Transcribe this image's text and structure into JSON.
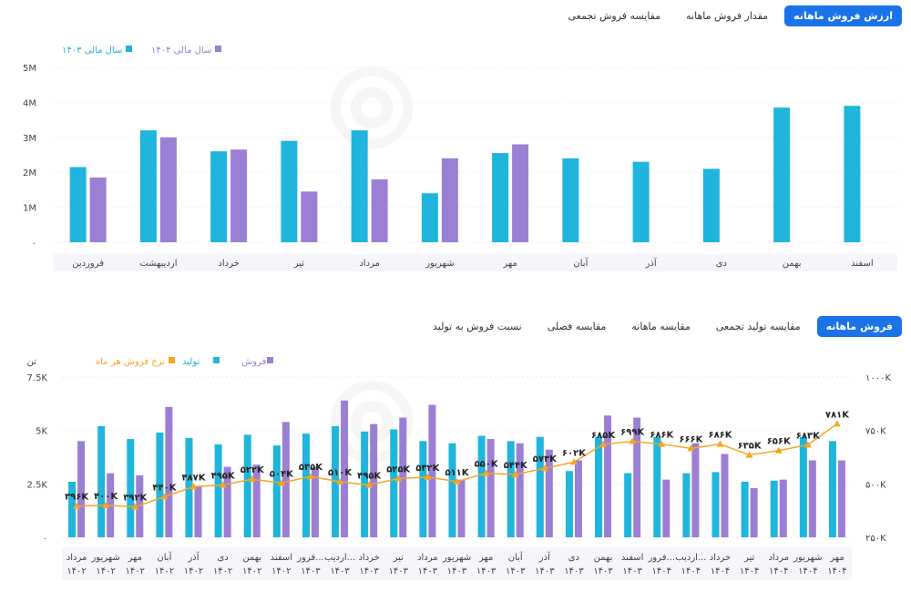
{
  "top_tabs": [
    {
      "label": "ارزش فروش ماهانه",
      "active": true
    },
    {
      "label": "مقدار فروش ماهانه",
      "active": false
    },
    {
      "label": "مقایسه فروش تجمعی",
      "active": false
    }
  ],
  "bottom_tabs": [
    {
      "label": "فروش ماهانه",
      "active": true
    },
    {
      "label": "مقایسه تولید تجمعی",
      "active": false
    },
    {
      "label": "مقایسه ماهانه",
      "active": false
    },
    {
      "label": "مقایسه فصلی",
      "active": false
    },
    {
      "label": "نسبت فروش به تولید",
      "active": false
    }
  ],
  "colors": {
    "blue": "#1fb5dc",
    "purple": "#9b7fd4",
    "orange": "#f5a623",
    "accent": "#1a73e8"
  },
  "chart_data": [
    {
      "type": "bar",
      "categories": [
        "فروردین",
        "اردیبهشت",
        "خرداد",
        "تیر",
        "مرداد",
        "شهریور",
        "مهر",
        "آبان",
        "آذر",
        "دی",
        "بهمن",
        "اسفند"
      ],
      "series": [
        {
          "name": "سال مالی ۱۴۰۳",
          "color": "#1fb5dc",
          "values": [
            2.15,
            3.2,
            2.6,
            2.9,
            3.2,
            1.4,
            2.55,
            2.4,
            2.3,
            2.1,
            3.85,
            3.9
          ]
        },
        {
          "name": "سال مالی ۱۴۰۴",
          "color": "#9b7fd4",
          "values": [
            1.85,
            3.0,
            2.65,
            1.45,
            1.8,
            2.4,
            2.8,
            null,
            null,
            null,
            null,
            null
          ]
        }
      ],
      "yticks": [
        "۰",
        "1M",
        "2M",
        "3M",
        "4M",
        "5M"
      ],
      "ylim": [
        0,
        5
      ],
      "legend": "top-left"
    },
    {
      "type": "bar",
      "left_axis_unit": "تن",
      "categories": [
        "مرداد ۱۴۰۲",
        "شهریور ۱۴۰۲",
        "مهر ۱۴۰۲",
        "آبان ۱۴۰۲",
        "آذر ۱۴۰۲",
        "دی ۱۴۰۲",
        "بهمن ۱۴۰۲",
        "اسفند ۱۴۰۲",
        "فرور... ۱۴۰۳",
        "اردیب... ۱۴۰۳",
        "خرداد ۱۴۰۳",
        "تیر ۱۴۰۳",
        "مرداد ۱۴۰۳",
        "شهریور ۱۴۰۳",
        "مهر ۱۴۰۳",
        "آبان ۱۴۰۳",
        "آذر ۱۴۰۳",
        "دی ۱۴۰۳",
        "بهمن ۱۴۰۳",
        "اسفند ۱۴۰۳",
        "فرور... ۱۴۰۴",
        "اردیب... ۱۴۰۴",
        "خرداد ۱۴۰۴",
        "تیر ۱۴۰۴",
        "مرداد ۱۴۰۴",
        "شهریور ۱۴۰۴",
        "مهر ۱۴۰۴"
      ],
      "series": [
        {
          "name": "تولید",
          "color": "#1fb5dc",
          "values": [
            2.6,
            5.2,
            4.6,
            4.9,
            4.65,
            4.35,
            4.8,
            4.3,
            4.85,
            5.2,
            4.95,
            5.05,
            4.5,
            4.4,
            4.75,
            4.5,
            4.7,
            3.1,
            4.7,
            3.0,
            4.7,
            3.0,
            3.05,
            2.6,
            2.65,
            4.7,
            4.5
          ]
        },
        {
          "name": "فروش",
          "color": "#9b7fd4",
          "values": [
            4.5,
            3.0,
            2.9,
            6.1,
            2.4,
            3.3,
            3.4,
            5.4,
            3.3,
            6.4,
            5.3,
            5.6,
            6.2,
            2.7,
            4.6,
            4.4,
            4.1,
            3.6,
            5.7,
            5.6,
            2.7,
            4.4,
            3.9,
            2.3,
            2.7,
            3.6,
            3.6
          ]
        },
        {
          "name": "نرخ فروش هر ماه",
          "color": "#f5a623",
          "values": [
            396,
            400,
            392,
            440,
            487,
            495,
            522,
            504,
            535,
            510,
            495,
            525,
            532,
            511,
            550,
            544,
            573,
            602,
            685,
            699,
            686,
            666,
            686,
            635,
            656,
            683,
            781
          ]
        }
      ],
      "line_labels": [
        "۳۹۶K",
        "۴۰۰K",
        "۳۹۲K",
        "۴۴۰K",
        "۴۸۷K",
        "۴۹۵K",
        "۵۲۲K",
        "۵۰۴K",
        "۵۳۵K",
        "۵۱۰K",
        "۴۹۵K",
        "۵۲۵K",
        "۵۳۲K",
        "۵۱۱K",
        "۵۵۰K",
        "۵۴۴K",
        "۵۷۳K",
        "۶۰۲K",
        "۶۸۵K",
        "۶۹۹K",
        "۶۸۶K",
        "۶۶۶K",
        "۶۸۶K",
        "۶۳۵K",
        "۶۵۶K",
        "۶۸۳K",
        "۷۸۱K"
      ],
      "left_yticks": [
        "۰",
        "2.5K",
        "5K",
        "7.5K"
      ],
      "left_ylim": [
        0,
        7.5
      ],
      "right_yticks": [
        "۲۵۰K",
        "۵۰۰K",
        "۷۵۰K",
        "۱۰۰۰K"
      ],
      "right_ylim": [
        250,
        1000
      ],
      "legend": "top-left"
    }
  ]
}
